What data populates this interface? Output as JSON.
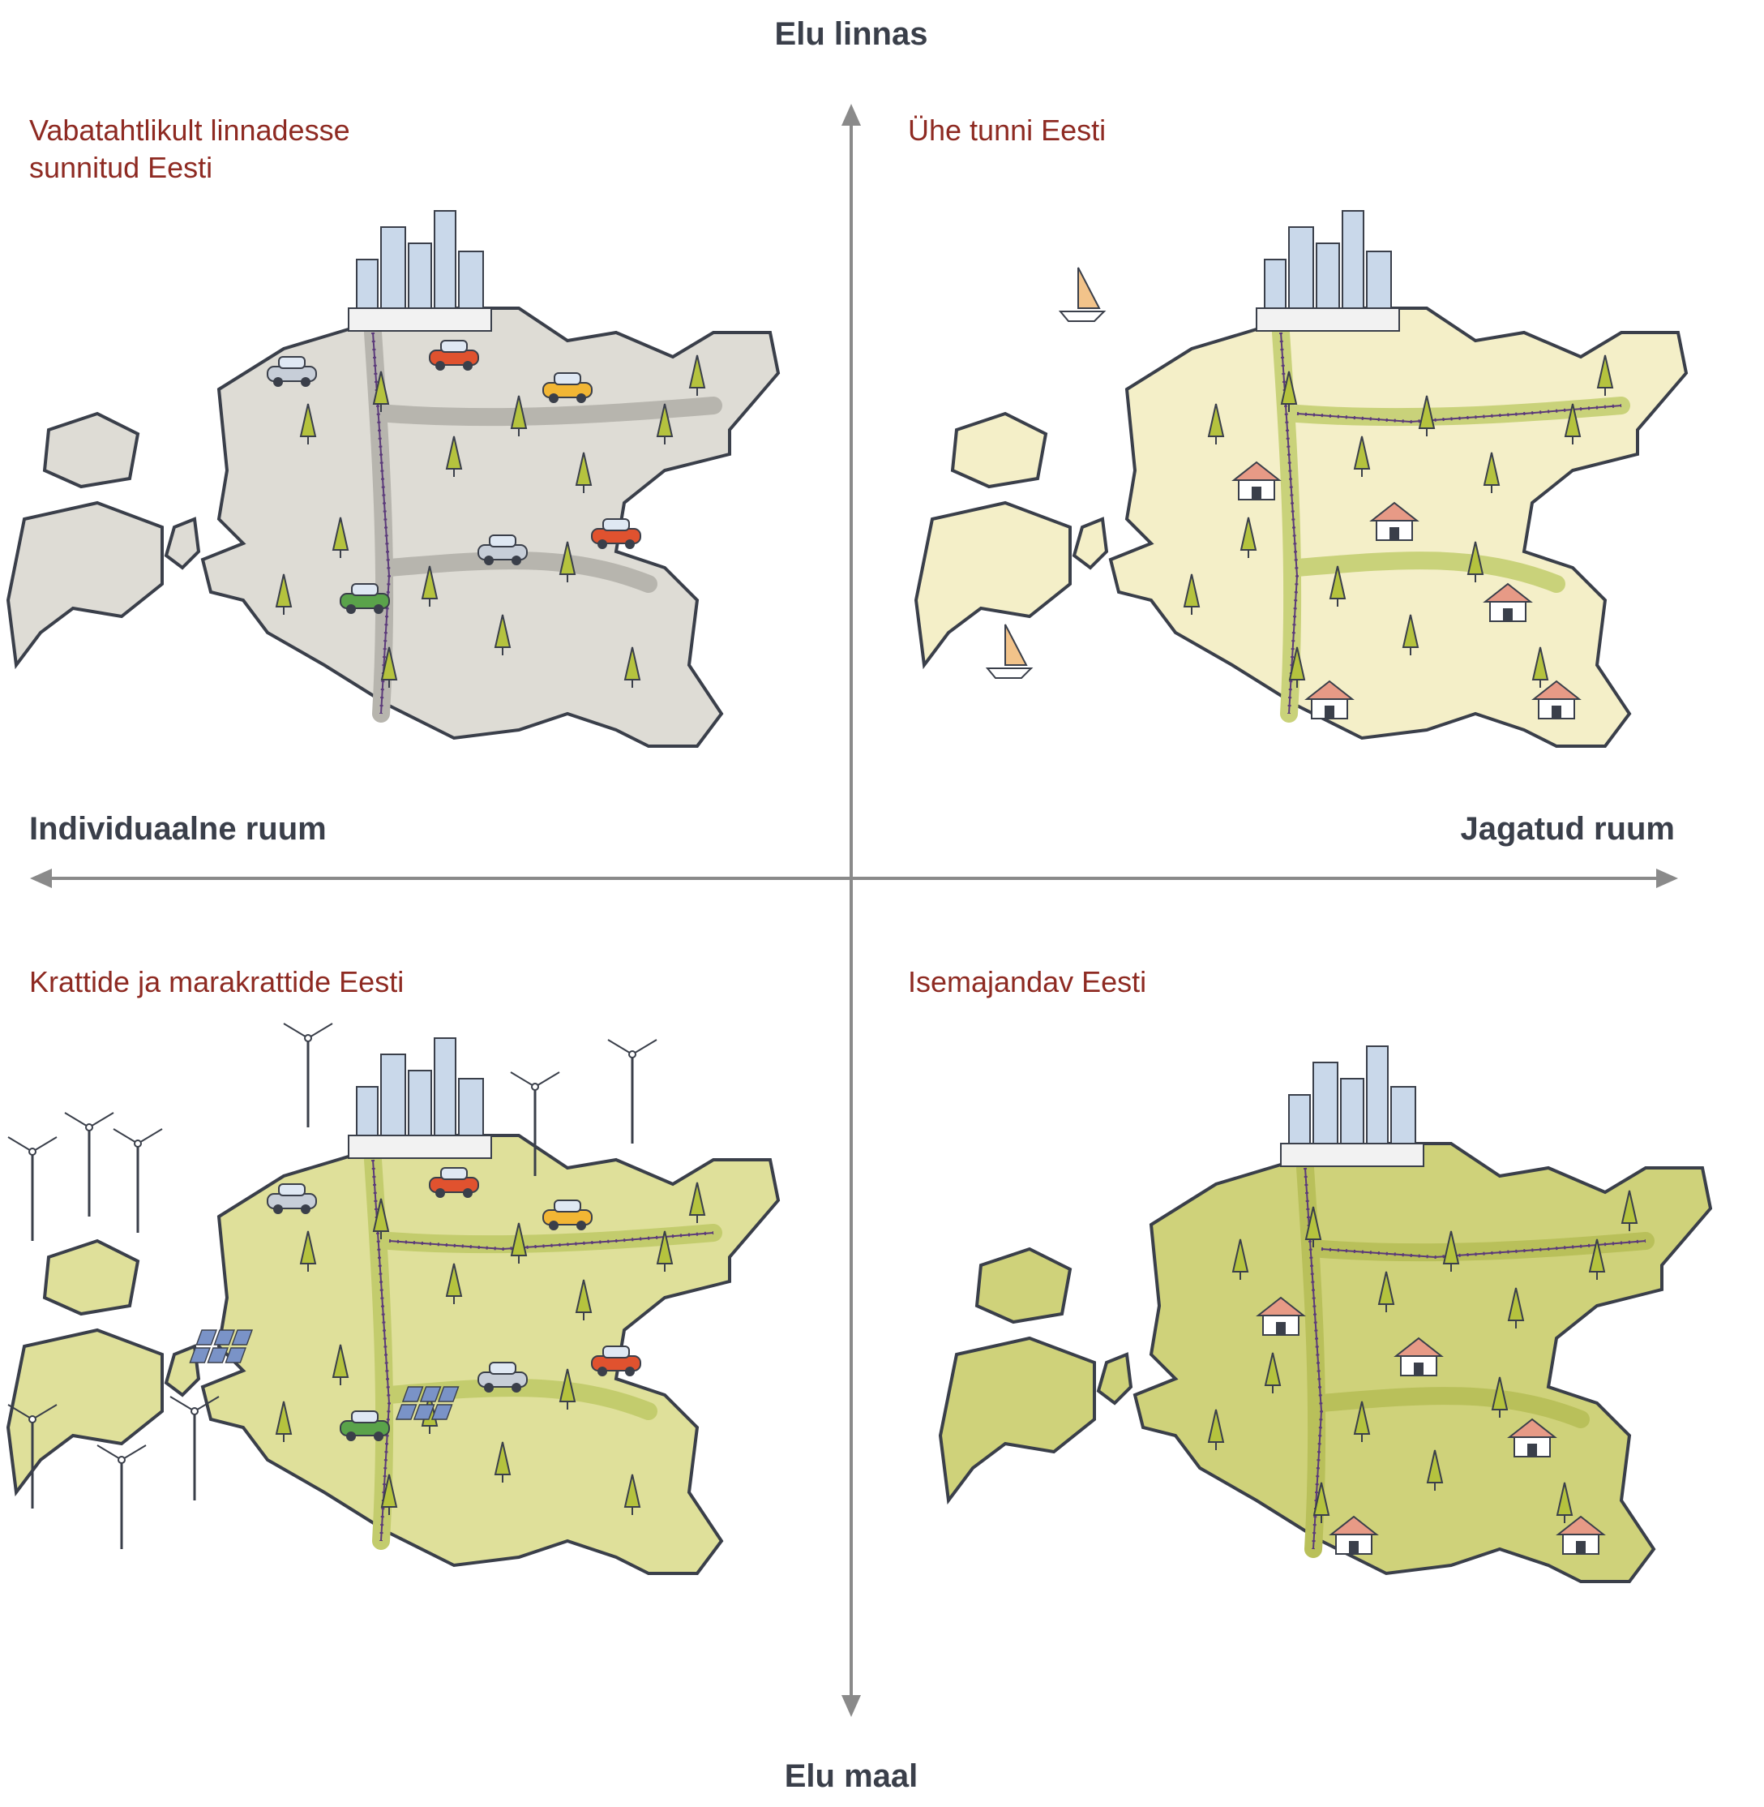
{
  "axes": {
    "top": "Elu linnas",
    "bottom": "Elu maal",
    "left": "Individuaalne ruum",
    "right": "Jagatud ruum"
  },
  "quadrants": {
    "top_left": {
      "title_line1": "Vabatahtlikult linnadesse",
      "title_line2": "sunnitud Eesti",
      "fill": "#dedcd5",
      "road": "#b7b5ae"
    },
    "top_right": {
      "title_line1": "Ühe tunni Eesti",
      "fill": "#f4efc8",
      "road": "#c9d27a"
    },
    "bottom_left": {
      "title_line1": "Krattide ja marakrattide Eesti",
      "fill": "#dfe09a",
      "road": "#c3cc6d"
    },
    "bottom_right": {
      "title_line1": "Isemajandav Eesti",
      "fill": "#cfd27a",
      "road": "#b9c05a"
    }
  },
  "colors": {
    "axis": "#8a8a8a",
    "title": "#8e2a22",
    "outline": "#3a3f4a",
    "rail": "#5b3a7a",
    "tree": "#b5c33e"
  },
  "icons": [
    "city-skyline-icon",
    "car-icon",
    "tree-icon",
    "wind-turbine-icon",
    "house-icon",
    "railway-icon",
    "sailboat-icon",
    "solar-panel-icon"
  ]
}
